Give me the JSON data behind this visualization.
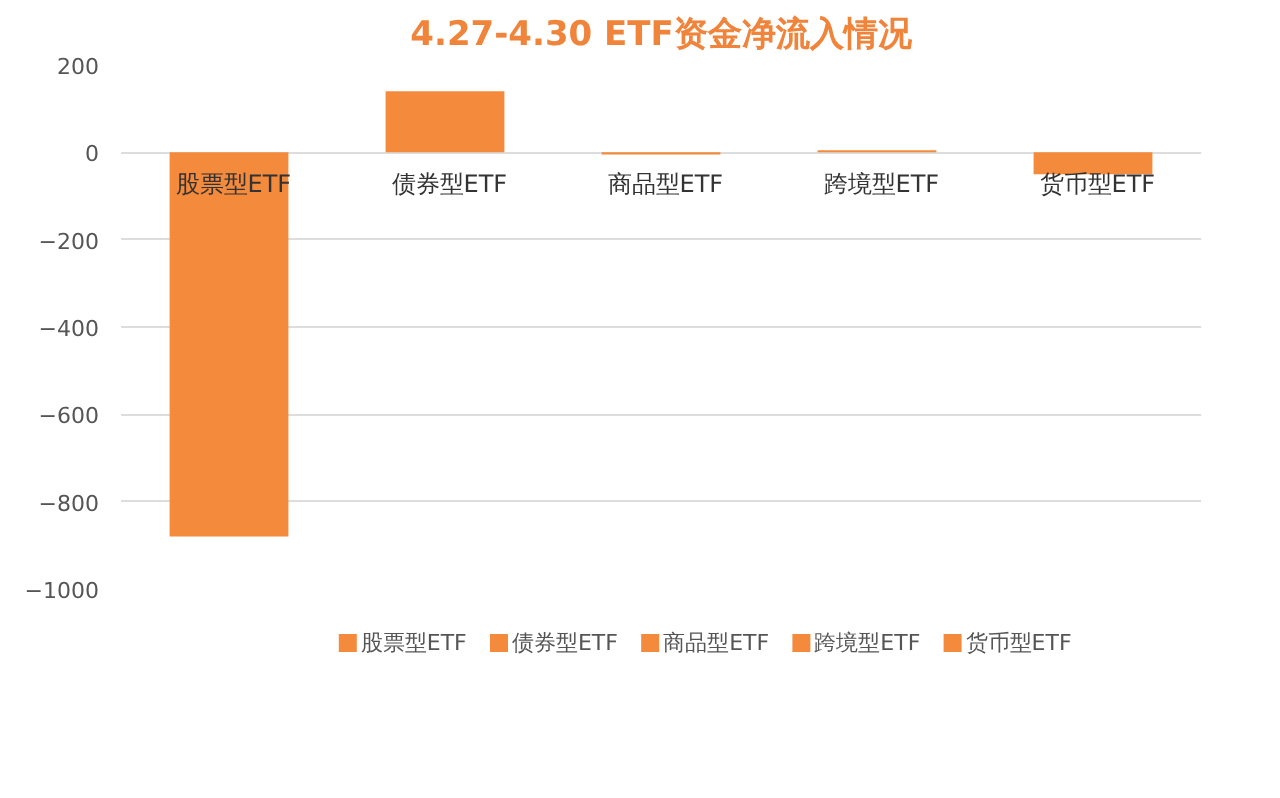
{
  "chart_data": {
    "type": "bar",
    "title": "4.27-4.30 ETF资金净流入情况",
    "categories": [
      "股票型ETF",
      "债券型ETF",
      "商品型ETF",
      "跨境型ETF",
      "货币型ETF"
    ],
    "series": [
      {
        "name": "股票型ETF",
        "color": "#f48a3c",
        "values": [
          -880,
          null,
          null,
          null,
          null
        ]
      },
      {
        "name": "债券型ETF",
        "color": "#f48a3c",
        "values": [
          null,
          140,
          null,
          null,
          null
        ]
      },
      {
        "name": "商品型ETF",
        "color": "#f48a3c",
        "values": [
          null,
          null,
          -5,
          null,
          null
        ]
      },
      {
        "name": "跨境型ETF",
        "color": "#f48a3c",
        "values": [
          null,
          null,
          null,
          5,
          null
        ]
      },
      {
        "name": "货币型ETF",
        "color": "#f48a3c",
        "values": [
          null,
          null,
          null,
          null,
          -50
        ]
      }
    ],
    "ylim": [
      -1000,
      200
    ],
    "yticks": [
      -1000,
      -800,
      -600,
      -400,
      -200,
      0,
      200
    ],
    "grid": "y",
    "legend": "bottom"
  }
}
